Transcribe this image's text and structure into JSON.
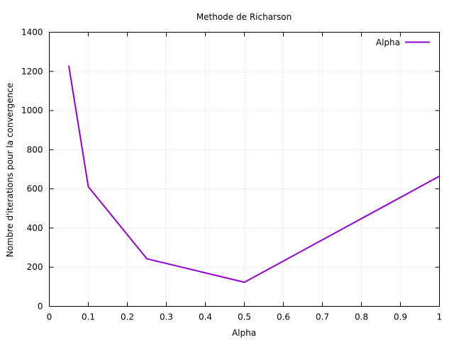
{
  "chart_data": {
    "type": "line",
    "title": "Methode de Richarson",
    "xlabel": "Alpha",
    "ylabel": "Nombre d'iterations pour la convergence",
    "xlim": [
      0,
      1
    ],
    "ylim": [
      0,
      1400
    ],
    "xticks": [
      0,
      0.1,
      0.2,
      0.3,
      0.4,
      0.5,
      0.6,
      0.7,
      0.8,
      0.9,
      1
    ],
    "xtick_labels": [
      "0",
      "0.1",
      "0.2",
      "0.3",
      "0.4",
      "0.5",
      "0.6",
      "0.7",
      "0.8",
      "0.9",
      "1"
    ],
    "yticks": [
      0,
      200,
      400,
      600,
      800,
      1000,
      1200,
      1400
    ],
    "ytick_labels": [
      "0",
      "200",
      "400",
      "600",
      "800",
      "1000",
      "1200",
      "1400"
    ],
    "grid": true,
    "legend_position": "top-right",
    "series": [
      {
        "name": "Alpha",
        "color": "#9400d3",
        "x": [
          0.05,
          0.1,
          0.25,
          0.5,
          1.0
        ],
        "y": [
          1228,
          611,
          243,
          123,
          665
        ]
      }
    ]
  }
}
